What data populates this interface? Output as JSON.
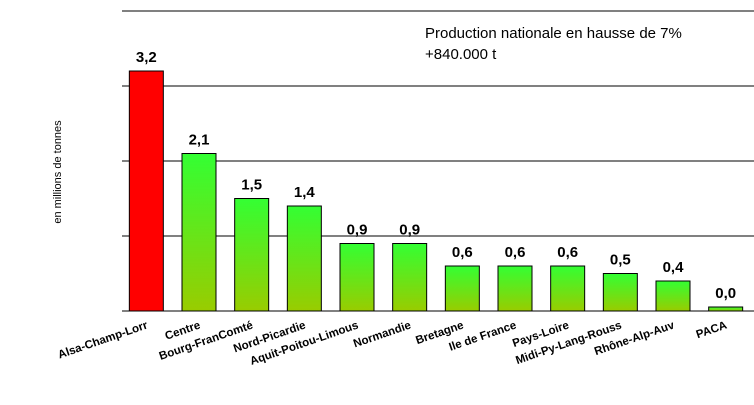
{
  "chart_data": {
    "type": "bar",
    "title": "",
    "xlabel": "",
    "ylabel": "en millions de tonnes",
    "ylim": [
      0,
      4
    ],
    "grid": true,
    "annotation": [
      "Production nationale en hausse de 7%",
      "+840.000 t"
    ],
    "categories": [
      "Alsa-Champ-Lorr",
      "Centre",
      "Bourg-FranComté",
      "Nord-Picardie",
      "Aquit-Poitou-Limous",
      "Normandie",
      "Bretagne",
      "Ile de France",
      "Pays-Loire",
      "Midi-Py-Lang-Rouss",
      "Rhône-Alp-Auv",
      "PACA"
    ],
    "values": [
      3.2,
      2.1,
      1.5,
      1.4,
      0.9,
      0.9,
      0.6,
      0.6,
      0.6,
      0.5,
      0.4,
      0.0
    ],
    "labels": [
      "3,2",
      "2,1",
      "1,5",
      "1,4",
      "0,9",
      "0,9",
      "0,6",
      "0,6",
      "0,6",
      "0,5",
      "0,4",
      "0,0"
    ],
    "colors": {
      "highlight": "#ff0000",
      "bar_top": "#33ff33",
      "bar_bottom": "#99cc00",
      "grid": "#000000"
    }
  }
}
